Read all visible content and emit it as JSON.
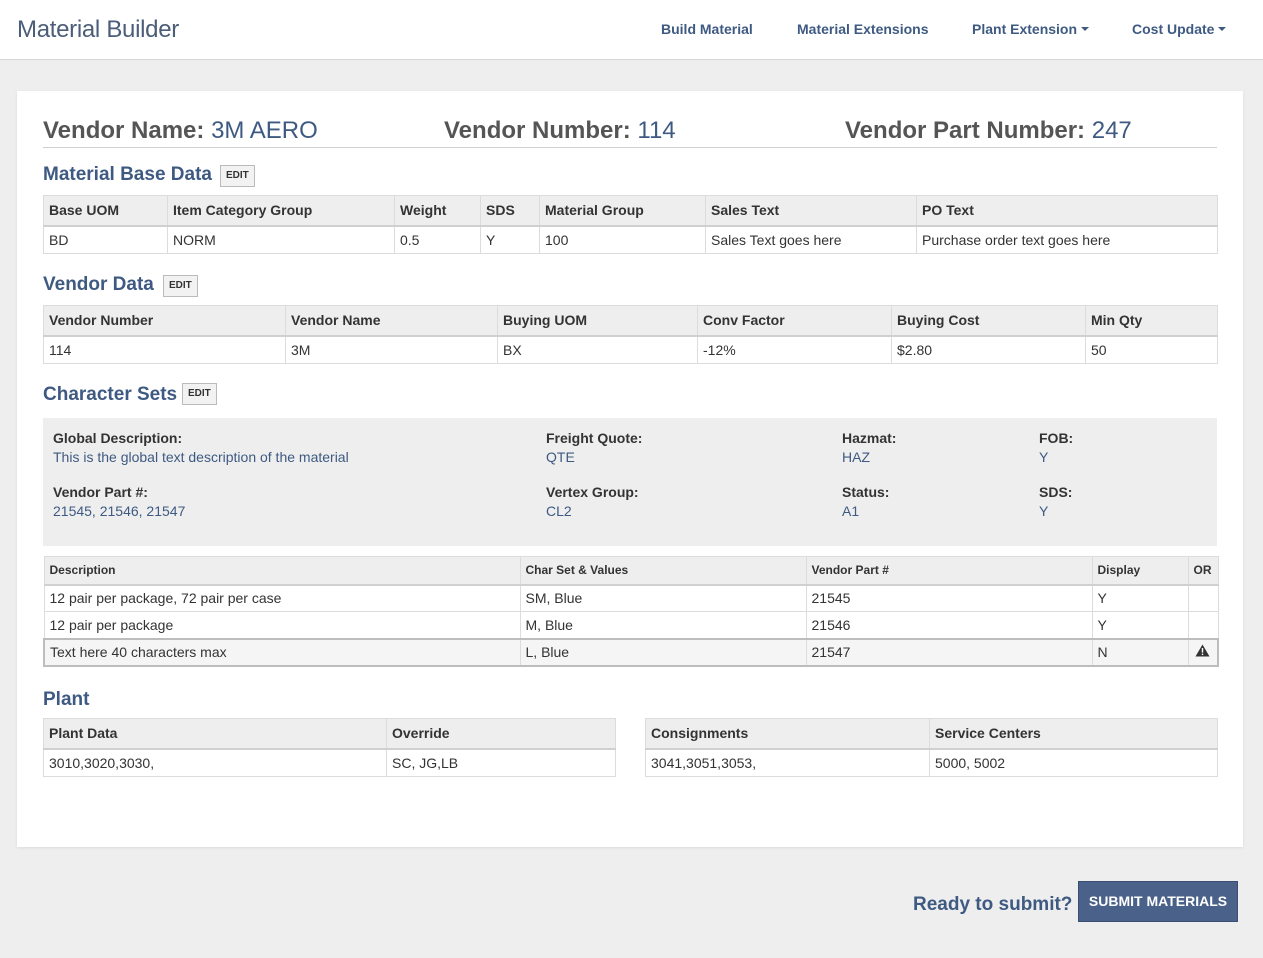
{
  "app": {
    "title": "Material Builder"
  },
  "nav": {
    "build": "Build Material",
    "extensions": "Material Extensions",
    "plant_extension": "Plant Extension",
    "cost_update": "Cost Update"
  },
  "header": {
    "vendor_name_label": "Vendor Name:",
    "vendor_name_value": "3M AERO",
    "vendor_number_label": "Vendor Number:",
    "vendor_number_value": "114",
    "vendor_part_label": "Vendor Part Number:",
    "vendor_part_value": "247"
  },
  "edit_label": "EDIT",
  "base": {
    "title": "Material Base Data",
    "columns": [
      "Base UOM",
      "Item Category Group",
      "Weight",
      "SDS",
      "Material Group",
      "Sales Text",
      "PO Text"
    ],
    "row": [
      "BD",
      "NORM",
      "0.5",
      "Y",
      "100",
      "Sales Text goes here",
      "Purchase order text goes here"
    ]
  },
  "vendor": {
    "title": "Vendor Data",
    "columns": [
      "Vendor Number",
      "Vendor Name",
      "Buying UOM",
      "Conv Factor",
      "Buying Cost",
      "Min Qty"
    ],
    "row": [
      "114",
      "3M",
      "BX",
      "-12%",
      "$2.80",
      "50"
    ]
  },
  "charsets": {
    "title": "Character Sets",
    "global_desc_label": "Global Description:",
    "global_desc_value": "This is the global text description of the material",
    "freight_label": "Freight Quote:",
    "freight_value": "QTE",
    "hazmat_label": "Hazmat:",
    "hazmat_value": "HAZ",
    "fob_label": "FOB:",
    "fob_value": "Y",
    "vendor_part_label": "Vendor Part #:",
    "vendor_part_value": "21545, 21546, 21547",
    "vertex_label": "Vertex Group:",
    "vertex_value": "CL2",
    "status_label": "Status:",
    "status_value": "A1",
    "sds_label": "SDS:",
    "sds_value": "Y",
    "columns": [
      "Description",
      "Char Set & Values",
      "Vendor Part #",
      "Display",
      "OR"
    ],
    "rows": [
      [
        "12 pair per package, 72 pair per case",
        "SM, Blue",
        "21545",
        "Y",
        ""
      ],
      [
        "12 pair per package",
        "M, Blue",
        "21546",
        "Y",
        ""
      ],
      [
        "Text here 40 characters max",
        "L, Blue",
        "21547",
        "N",
        ""
      ]
    ]
  },
  "plant": {
    "title": "Plant",
    "left_columns": [
      "Plant Data",
      "Override"
    ],
    "left_row": [
      "3010,3020,3030,",
      "SC, JG,LB"
    ],
    "right_columns": [
      "Consignments",
      "Service Centers"
    ],
    "right_row": [
      "3041,3051,3053,",
      "5000, 5002"
    ]
  },
  "footer": {
    "ready": "Ready to submit?",
    "submit": "SUBMIT MATERIALS"
  }
}
